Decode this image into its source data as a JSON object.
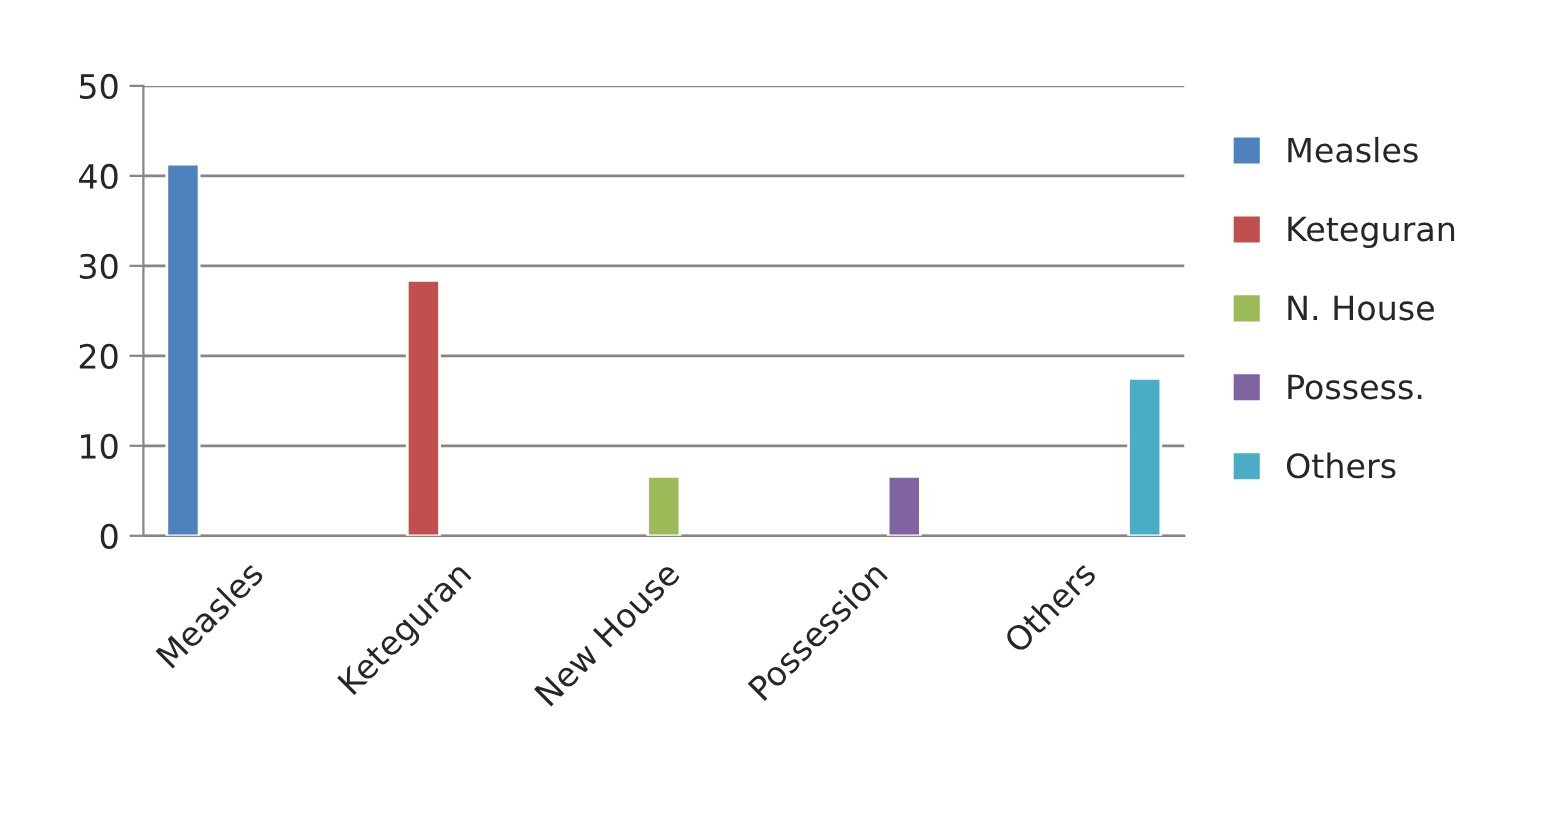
{
  "chart_data": {
    "type": "bar",
    "categories": [
      "Measles",
      "Keteguran",
      "New House",
      "Possession",
      "Others"
    ],
    "series": [
      {
        "name": "Measles",
        "color": "#4f81bd",
        "values": [
          41.3,
          null,
          null,
          null,
          null
        ]
      },
      {
        "name": "Keteguran",
        "color": "#c0504d",
        "values": [
          null,
          28.4,
          null,
          null,
          null
        ]
      },
      {
        "name": "N. House",
        "color": "#9bbb59",
        "values": [
          null,
          null,
          6.6,
          null,
          null
        ]
      },
      {
        "name": "Possess.",
        "color": "#8064a2",
        "values": [
          null,
          null,
          null,
          6.6,
          null
        ]
      },
      {
        "name": "Others",
        "color": "#4bacc6",
        "values": [
          null,
          null,
          null,
          null,
          17.5
        ]
      }
    ],
    "ylim": [
      0,
      50
    ],
    "yticks": [
      0,
      10,
      20,
      30,
      40,
      50
    ],
    "grid": "y",
    "legend": "right"
  }
}
